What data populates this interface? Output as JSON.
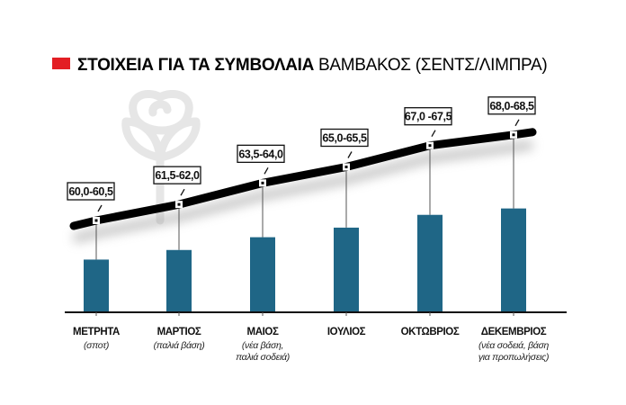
{
  "chart_data": {
    "type": "bar",
    "title_bold": "ΣΤΟΙΧΕΙΑ ΓΙΑ ΤΑ ΣΥΜΒΟΛΑΙΑ",
    "title_rest": "ΒΑΜΒΑΚΟΣ (ΣΕΝΤΣ/ΛΙΜΠΡΑ)",
    "categories": [
      "ΜΕΤΡΗΤΑ",
      "ΜΑΡΤΙΟΣ",
      "ΜΑΙΟΣ",
      "ΙΟΥΛΙΟΣ",
      "ΟΚΤΩΒΡΙΟΣ",
      "ΔΕΚΕΜΒΡΙΟΣ"
    ],
    "subtitles": [
      [
        "(σποτ)"
      ],
      [
        "(παλιά βάση)"
      ],
      [
        "(νέα βάση,",
        "παλιά σοδειά)"
      ],
      [],
      [],
      [
        "(νέα σοδειά, βάση",
        "για προπωλήσεις)"
      ]
    ],
    "value_labels": [
      "60,0-60,5",
      "61,5-62,0",
      "63,5-64,0",
      "65,0-65,5",
      "67,0 -67,5",
      "68,0-68,5"
    ],
    "ranges": [
      [
        60.0,
        60.5
      ],
      [
        61.5,
        62.0
      ],
      [
        63.5,
        64.0
      ],
      [
        65.0,
        65.5
      ],
      [
        67.0,
        67.5
      ],
      [
        68.0,
        68.5
      ]
    ],
    "bar_baseline_value": 52,
    "colors": {
      "bar": "#1f6686",
      "line": "#000000",
      "accent": "#e31e24",
      "icon": "#e6e6e6"
    }
  }
}
